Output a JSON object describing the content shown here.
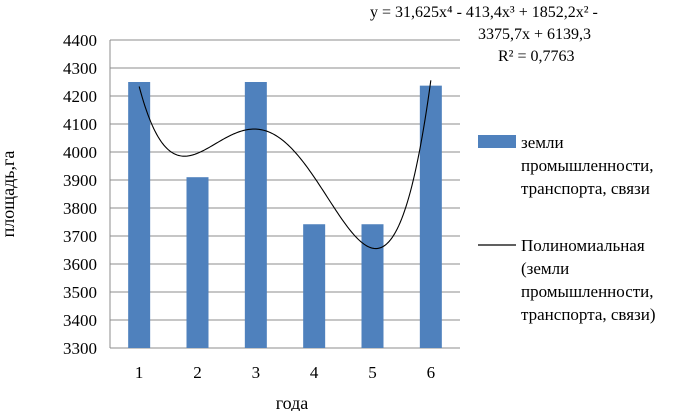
{
  "chart_data": {
    "type": "bar",
    "categories": [
      "1",
      "2",
      "3",
      "4",
      "5",
      "6"
    ],
    "series": [
      {
        "name": "земли промышленности, транспорта, связи",
        "values": [
          4250,
          3910,
          4250,
          3742,
          3742,
          4237
        ],
        "color": "#4f81bd"
      }
    ],
    "trendline": {
      "name": "Полиномиальная (земли промышленности, транспорта, связи)",
      "type": "polynomial",
      "order": 4,
      "coefficients": [
        31.625,
        -413.4,
        1852.2,
        -3375.7,
        6139.3
      ],
      "equation_lines": [
        "y = 31,625x⁴ - 413,4x³ + 1852,2x² -",
        "3375,7x + 6139,3"
      ],
      "r_squared_text": "R² = 0,7763",
      "color": "#000000"
    },
    "xlabel": "года",
    "ylabel": "площадь,га",
    "ylim": [
      3300,
      4400
    ],
    "yticks": [
      3300,
      3400,
      3500,
      3600,
      3700,
      3800,
      3900,
      4000,
      4100,
      4200,
      4300,
      4400
    ],
    "grid": true,
    "legend": {
      "position": "right",
      "entries": [
        {
          "kind": "bar",
          "lines": [
            "земли",
            "промышленности,",
            "транспорта, связи"
          ]
        },
        {
          "kind": "line",
          "lines": [
            "Полиномиальная",
            "(земли",
            "промышленности,",
            "транспорта, связи)"
          ]
        }
      ]
    }
  }
}
